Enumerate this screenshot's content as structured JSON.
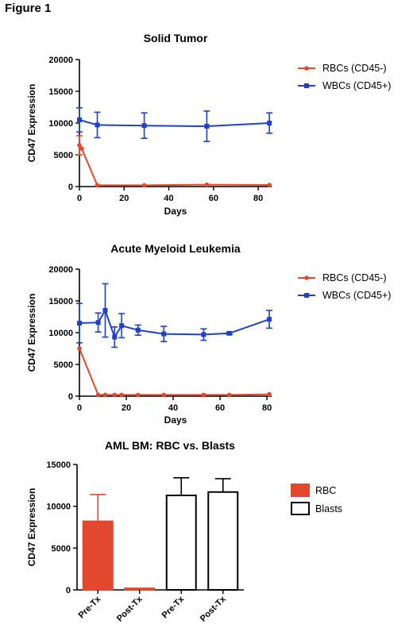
{
  "figure_label": "Figure 1",
  "colors": {
    "red": "#e3472d",
    "blue": "#1f3fcc",
    "axis": "#000000"
  },
  "chart_data": [
    {
      "type": "line",
      "title": "Solid Tumor",
      "xlabel": "Days",
      "ylabel": "CD47 Expression",
      "xlim": [
        0,
        86
      ],
      "ylim": [
        0,
        20000
      ],
      "xticks": [
        0,
        20,
        40,
        60,
        80
      ],
      "yticks": [
        0,
        5000,
        10000,
        15000,
        20000
      ],
      "legend_position": "right",
      "series": [
        {
          "name": "RBCs (CD45-)",
          "color": "#e3472d",
          "marker": "circle",
          "x": [
            0,
            1,
            8,
            29,
            57,
            85
          ],
          "y": [
            6500,
            6000,
            200,
            200,
            300,
            250
          ],
          "err": [
            1500,
            0,
            0,
            0,
            0,
            0
          ]
        },
        {
          "name": "WBCs (CD45+)",
          "color": "#1f3fcc",
          "marker": "square",
          "x": [
            0,
            8,
            29,
            57,
            85
          ],
          "y": [
            10500,
            9700,
            9600,
            9500,
            10000
          ],
          "err": [
            1900,
            2000,
            2000,
            2400,
            1600
          ]
        }
      ]
    },
    {
      "type": "line",
      "title": "Acute Myeloid Leukemia",
      "xlabel": "Days",
      "ylabel": "CD47 Expression",
      "xlim": [
        0,
        82
      ],
      "ylim": [
        0,
        20000
      ],
      "xticks": [
        0,
        20,
        40,
        60,
        80
      ],
      "yticks": [
        0,
        5000,
        10000,
        15000,
        20000
      ],
      "legend_position": "right",
      "series": [
        {
          "name": "RBCs (CD45-)",
          "color": "#e3472d",
          "marker": "circle",
          "x": [
            0,
            8,
            11,
            15,
            18,
            25,
            36,
            53,
            64,
            81
          ],
          "y": [
            7500,
            200,
            200,
            200,
            200,
            200,
            200,
            200,
            200,
            300
          ],
          "err": [
            0,
            0,
            0,
            0,
            0,
            0,
            0,
            0,
            0,
            0
          ]
        },
        {
          "name": "WBCs (CD45+)",
          "color": "#1f3fcc",
          "marker": "square",
          "x": [
            0,
            8,
            11,
            15,
            18,
            25,
            36,
            53,
            64,
            81
          ],
          "y": [
            11500,
            11600,
            13500,
            9300,
            11100,
            10400,
            9800,
            9700,
            9900,
            12100
          ],
          "err": [
            3100,
            1500,
            4200,
            1600,
            1900,
            800,
            1200,
            900,
            200,
            1400
          ]
        }
      ]
    },
    {
      "type": "bar",
      "title": "AML BM: RBC vs. Blasts",
      "xlabel": "",
      "ylabel": "CD47 Expression",
      "ylim": [
        0,
        15000
      ],
      "yticks": [
        0,
        5000,
        10000,
        15000
      ],
      "categories": [
        "Pre-Tx",
        "Post-Tx",
        "Pre-Tx",
        "Post-Tx"
      ],
      "values": [
        8200,
        180,
        11300,
        11700
      ],
      "err": [
        3200,
        0,
        2100,
        1600
      ],
      "groups": [
        "RBC",
        "RBC",
        "Blasts",
        "Blasts"
      ],
      "legend_position": "right",
      "legend": [
        {
          "name": "RBC",
          "fill": "#e3472d"
        },
        {
          "name": "Blasts",
          "fill": "#ffffff"
        }
      ]
    }
  ]
}
